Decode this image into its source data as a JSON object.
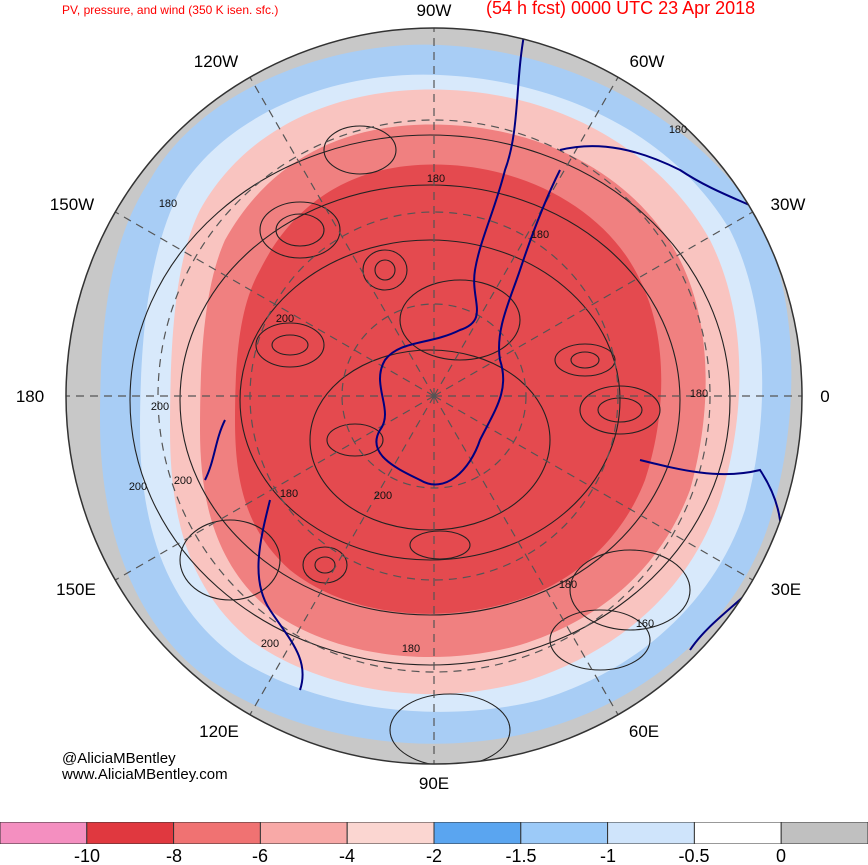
{
  "header": {
    "left_title": "PV, pressure, and wind (350 K isen. sfc.)",
    "right_title": "(54 h fcst) 0000 UTC 23 Apr 2018"
  },
  "longitude_labels": [
    "90W",
    "60W",
    "30W",
    "0",
    "30E",
    "60E",
    "90E",
    "120E",
    "150E",
    "180",
    "150W",
    "120W"
  ],
  "contour_labels": [
    "180",
    "180",
    "180",
    "180",
    "180",
    "180",
    "200",
    "200",
    "200",
    "200",
    "200",
    "180",
    "160",
    "200",
    "180"
  ],
  "credits": {
    "handle": "@AliciaMBentley",
    "website": "www.AliciaMBentley.com"
  },
  "colorbar": {
    "labels": [
      "-10",
      "-8",
      "-6",
      "-4",
      "-2",
      "-1.5",
      "-1",
      "-0.5",
      "0"
    ],
    "colors": [
      "#f48fc0",
      "#e0383f",
      "#f07272",
      "#f8a9a7",
      "#fbd6d1",
      "#5aa5f0",
      "#9ccaf8",
      "#cfe4fb",
      "#ffffff",
      "#c0c0c0"
    ]
  },
  "map_colors": {
    "background_ring": "#c8c8c8",
    "blue_band": "#a8cdf5",
    "light_blue": "#d8e9fb",
    "red_core": "#e44a4f",
    "red_mid": "#f08080",
    "red_light": "#f9c4c0",
    "coast": "#000080",
    "contour": "#222222"
  }
}
